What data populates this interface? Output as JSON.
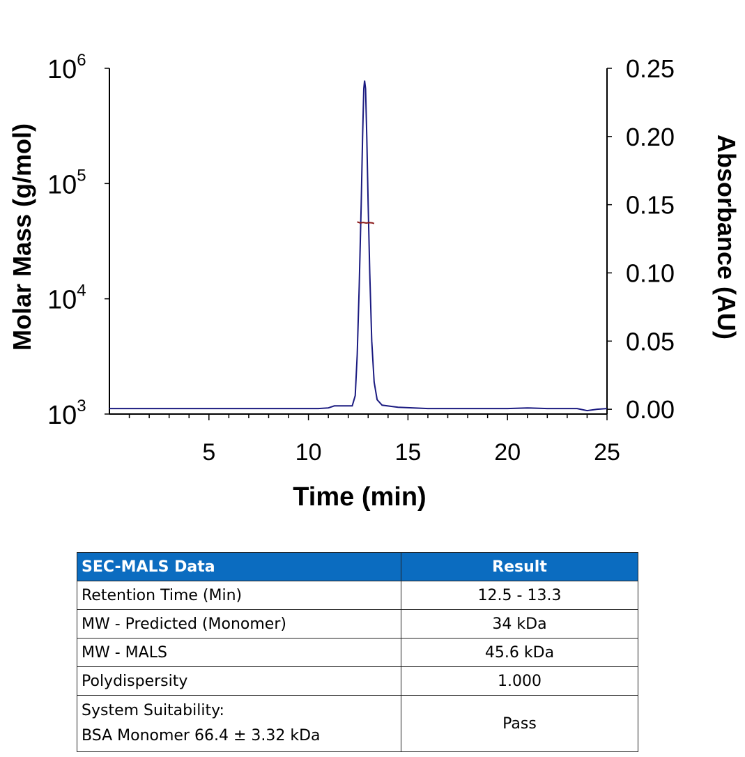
{
  "chart_data": {
    "type": "line",
    "xlabel": "Time (min)",
    "ylabel_left": "Molar Mass (g/mol)",
    "ylabel_right": "Absorbance (AU)",
    "xlim": [
      0,
      25
    ],
    "xticks": [
      5,
      10,
      15,
      20,
      25
    ],
    "y_left_scale": "log",
    "y_left_lim": [
      1000,
      1000000
    ],
    "y_left_ticks": [
      {
        "base": "10",
        "exp": "3",
        "value": 1000
      },
      {
        "base": "10",
        "exp": "4",
        "value": 10000
      },
      {
        "base": "10",
        "exp": "5",
        "value": 100000
      },
      {
        "base": "10",
        "exp": "6",
        "value": 1000000
      }
    ],
    "y_right_lim": [
      -0.0035,
      0.25
    ],
    "y_right_ticks": [
      "0.00",
      "0.05",
      "0.10",
      "0.15",
      "0.20",
      "0.25"
    ],
    "grid": false,
    "series": [
      {
        "axis": "right",
        "color": "#1a1a80",
        "points": [
          [
            0,
            0.0005
          ],
          [
            10.5,
            0.0005
          ],
          [
            11,
            0.001
          ],
          [
            11.3,
            0.0025
          ],
          [
            12.2,
            0.0025
          ],
          [
            12.35,
            0.01
          ],
          [
            12.45,
            0.04
          ],
          [
            12.55,
            0.09
          ],
          [
            12.65,
            0.15
          ],
          [
            12.72,
            0.2
          ],
          [
            12.78,
            0.235
          ],
          [
            12.82,
            0.241
          ],
          [
            12.87,
            0.235
          ],
          [
            12.93,
            0.2
          ],
          [
            13.0,
            0.15
          ],
          [
            13.08,
            0.1
          ],
          [
            13.18,
            0.05
          ],
          [
            13.3,
            0.02
          ],
          [
            13.45,
            0.007
          ],
          [
            13.7,
            0.003
          ],
          [
            14.5,
            0.0015
          ],
          [
            16,
            0.0005
          ],
          [
            20,
            0.0005
          ],
          [
            21,
            0.001
          ],
          [
            22,
            0.0005
          ],
          [
            23.5,
            0.0005
          ],
          [
            24,
            -0.001
          ],
          [
            24.5,
            0
          ],
          [
            25,
            0.0005
          ]
        ]
      },
      {
        "axis": "left",
        "color": "#8b1a1a",
        "points": [
          [
            12.45,
            46500
          ],
          [
            12.6,
            45500
          ],
          [
            12.75,
            46000
          ],
          [
            12.9,
            45400
          ],
          [
            13.05,
            45800
          ],
          [
            13.2,
            45600
          ],
          [
            13.3,
            45000
          ]
        ]
      }
    ]
  },
  "table": {
    "headers": [
      "SEC-MALS Data",
      "Result"
    ],
    "rows": [
      [
        "Retention Time (Min)",
        "12.5 - 13.3"
      ],
      [
        "MW - Predicted (Monomer)",
        "34 kDa"
      ],
      [
        "MW - MALS",
        "45.6 kDa"
      ],
      [
        "Polydispersity",
        "1.000"
      ]
    ],
    "last_row": {
      "line1": "System Suitability:",
      "line2": "BSA Monomer 66.4 ± 3.32 kDa",
      "result": "Pass"
    }
  }
}
